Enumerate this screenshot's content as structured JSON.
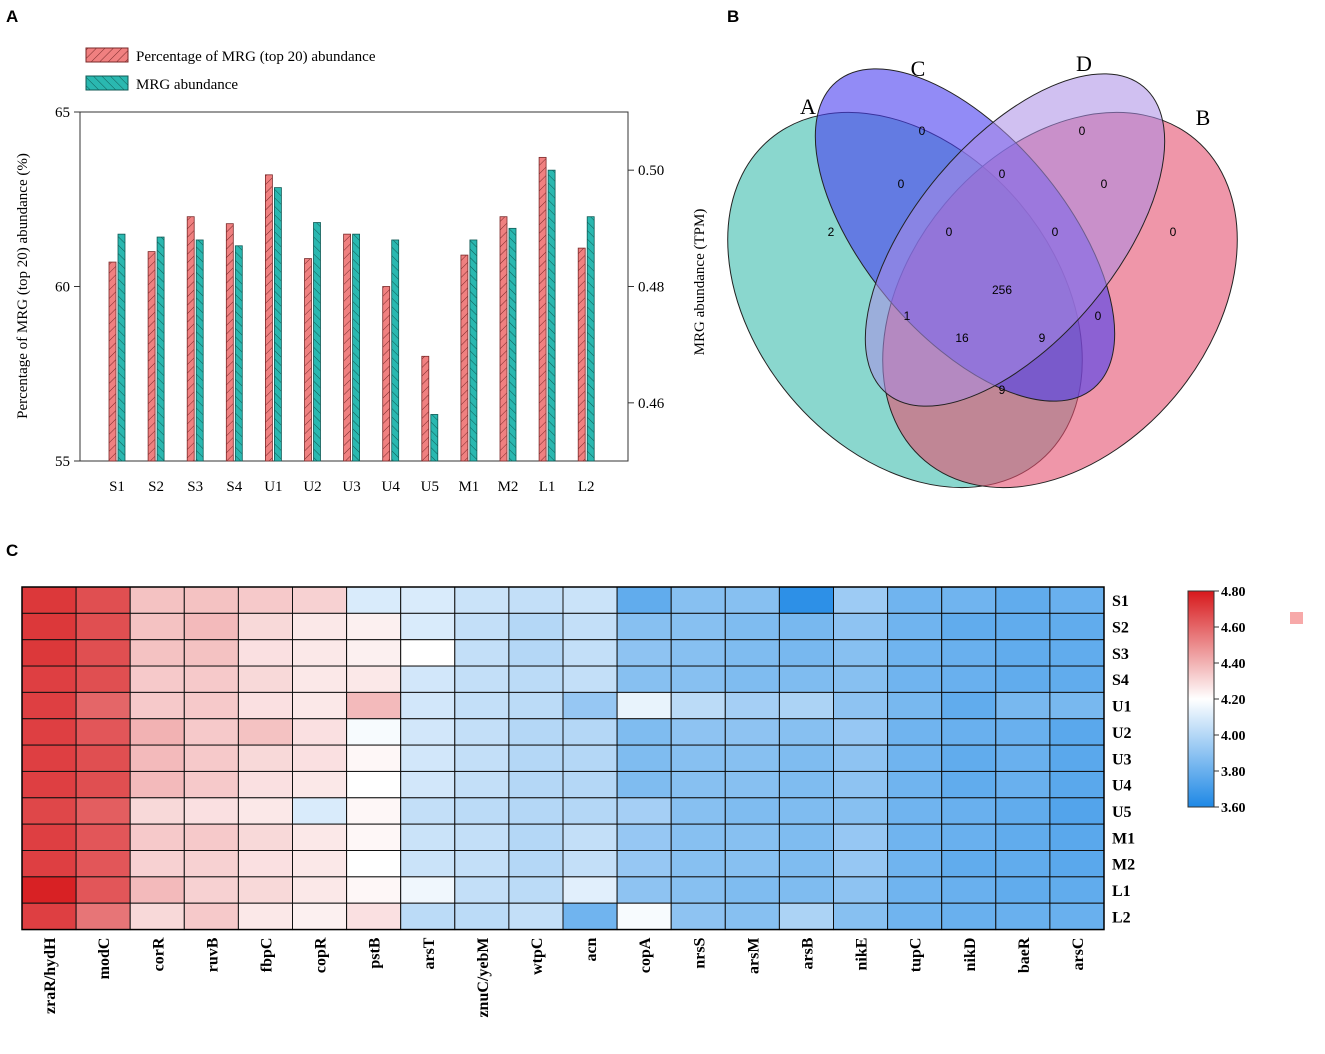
{
  "panels": {
    "a": "A",
    "b": "B",
    "c": "C"
  },
  "chart_data": [
    {
      "type": "bar",
      "categories": [
        "S1",
        "S2",
        "S3",
        "S4",
        "U1",
        "U2",
        "U3",
        "U4",
        "U5",
        "M1",
        "M2",
        "L1",
        "L2"
      ],
      "series": [
        {
          "name": "Percentage of MRG (top 20) abundance",
          "axis": "left",
          "color": "#f08080",
          "values": [
            60.7,
            61.0,
            62.0,
            61.8,
            63.2,
            60.8,
            61.5,
            60.0,
            58.0,
            60.9,
            62.0,
            63.7,
            61.1
          ]
        },
        {
          "name": "MRG abundance",
          "axis": "right",
          "color": "#2ab8b0",
          "values": [
            0.489,
            0.4885,
            0.488,
            0.487,
            0.497,
            0.491,
            0.489,
            0.488,
            0.458,
            0.488,
            0.49,
            0.5,
            0.492
          ]
        }
      ],
      "ylabel": "Percentage of MRG (top 20) abundance (%)",
      "ylim": [
        55,
        65
      ],
      "yticks": [
        "55",
        "60",
        "65"
      ],
      "y2label": "MRG abundance (TPM)",
      "y2lim": [
        0.45,
        0.51
      ],
      "y2ticks": [
        "0.46",
        "0.48",
        "0.50"
      ],
      "legend_position": "top-left"
    },
    {
      "type": "venn",
      "sets": [
        {
          "name": "A",
          "color": "#3cbdae"
        },
        {
          "name": "C",
          "color": "#4a3ef0"
        },
        {
          "name": "D",
          "color": "#a98ce6"
        },
        {
          "name": "B",
          "color": "#e55070"
        }
      ],
      "regions": [
        {
          "sets": "A",
          "count": "2"
        },
        {
          "sets": "C",
          "count": "0"
        },
        {
          "sets": "D",
          "count": "0"
        },
        {
          "sets": "B",
          "count": "0"
        },
        {
          "sets": "A&C",
          "count": "0"
        },
        {
          "sets": "C&D",
          "count": "0"
        },
        {
          "sets": "D&B",
          "count": "0"
        },
        {
          "sets": "A&C&D",
          "count": "0"
        },
        {
          "sets": "C&D&B",
          "count": "0"
        },
        {
          "sets": "A&D",
          "count": "1"
        },
        {
          "sets": "A&C&D&B",
          "count": "256"
        },
        {
          "sets": "C&B",
          "count": "0"
        },
        {
          "sets": "A&D&B",
          "count": "16"
        },
        {
          "sets": "A&C&B",
          "count": "9"
        },
        {
          "sets": "A&B",
          "count": "9"
        }
      ]
    },
    {
      "type": "heatmap",
      "rows": [
        "S1",
        "S2",
        "S3",
        "S4",
        "U1",
        "U2",
        "U3",
        "U4",
        "U5",
        "M1",
        "M2",
        "L1",
        "L2"
      ],
      "columns": [
        "zraR/hydH",
        "modC",
        "corR",
        "ruvB",
        "fbpC",
        "copR",
        "pstB",
        "arsT",
        "znuC/yebM",
        "wtpC",
        "acn",
        "copA",
        "nrsS",
        "arsM",
        "arsB",
        "nikE",
        "tupC",
        "nikD",
        "baeR",
        "arsC"
      ],
      "values": [
        [
          4.72,
          4.66,
          4.36,
          4.36,
          4.34,
          4.32,
          4.1,
          4.1,
          4.06,
          4.04,
          4.06,
          3.78,
          3.88,
          3.88,
          3.64,
          3.94,
          3.82,
          3.82,
          3.78,
          3.8
        ],
        [
          4.72,
          4.66,
          4.36,
          4.38,
          4.3,
          4.26,
          4.24,
          4.1,
          4.04,
          4.0,
          4.04,
          3.88,
          3.88,
          3.86,
          3.84,
          3.9,
          3.82,
          3.78,
          3.78,
          3.78
        ],
        [
          4.72,
          4.66,
          4.36,
          4.36,
          4.28,
          4.26,
          4.24,
          4.2,
          4.04,
          4.0,
          4.04,
          3.9,
          3.88,
          3.86,
          3.84,
          3.88,
          3.82,
          3.8,
          3.78,
          3.78
        ],
        [
          4.7,
          4.66,
          4.34,
          4.34,
          4.3,
          4.26,
          4.26,
          4.08,
          4.04,
          4.02,
          4.04,
          3.88,
          3.88,
          3.86,
          3.86,
          3.88,
          3.82,
          3.8,
          3.78,
          3.78
        ],
        [
          4.7,
          4.6,
          4.34,
          4.34,
          4.28,
          4.26,
          4.38,
          4.08,
          4.04,
          4.02,
          3.92,
          4.14,
          4.02,
          3.96,
          3.98,
          3.9,
          3.84,
          3.78,
          3.84,
          3.84
        ],
        [
          4.7,
          4.64,
          4.4,
          4.34,
          4.36,
          4.28,
          4.18,
          4.08,
          4.04,
          4.0,
          4.0,
          3.86,
          3.9,
          3.9,
          3.88,
          3.92,
          3.82,
          3.8,
          3.8,
          3.76
        ],
        [
          4.7,
          4.66,
          4.38,
          4.34,
          4.3,
          4.28,
          4.22,
          4.08,
          4.04,
          4.0,
          4.0,
          3.86,
          3.88,
          3.88,
          3.86,
          3.9,
          3.82,
          3.78,
          3.8,
          3.76
        ],
        [
          4.7,
          4.66,
          4.38,
          4.34,
          4.28,
          4.26,
          4.2,
          4.08,
          4.04,
          4.0,
          4.0,
          3.86,
          3.88,
          3.88,
          3.86,
          3.9,
          3.82,
          3.78,
          3.8,
          3.76
        ],
        [
          4.68,
          4.62,
          4.3,
          4.28,
          4.26,
          4.1,
          4.22,
          4.04,
          4.02,
          4.0,
          4.0,
          3.96,
          3.88,
          3.86,
          3.86,
          3.88,
          3.82,
          3.8,
          3.78,
          3.74
        ],
        [
          4.7,
          4.64,
          4.34,
          4.34,
          4.3,
          4.26,
          4.22,
          4.06,
          4.04,
          4.0,
          4.04,
          3.92,
          3.88,
          3.88,
          3.86,
          3.92,
          3.82,
          3.8,
          3.78,
          3.76
        ],
        [
          4.7,
          4.64,
          4.32,
          4.32,
          4.28,
          4.26,
          4.2,
          4.06,
          4.04,
          4.0,
          4.04,
          3.92,
          3.88,
          3.88,
          3.86,
          3.92,
          3.82,
          3.78,
          3.78,
          3.76
        ],
        [
          4.78,
          4.64,
          4.38,
          4.32,
          4.3,
          4.26,
          4.22,
          4.16,
          4.04,
          4.02,
          4.12,
          3.9,
          3.88,
          3.86,
          3.86,
          3.9,
          3.82,
          3.8,
          3.78,
          3.78
        ],
        [
          4.7,
          4.56,
          4.3,
          4.34,
          4.26,
          4.24,
          4.28,
          4.02,
          4.02,
          4.04,
          3.82,
          4.18,
          3.9,
          3.88,
          3.98,
          3.88,
          3.82,
          3.8,
          3.8,
          3.8
        ]
      ],
      "scale": {
        "min": 3.6,
        "max": 4.8,
        "labels": [
          "4.80",
          "4.60",
          "4.40",
          "4.20",
          "4.00",
          "3.80",
          "3.60"
        ]
      }
    }
  ]
}
